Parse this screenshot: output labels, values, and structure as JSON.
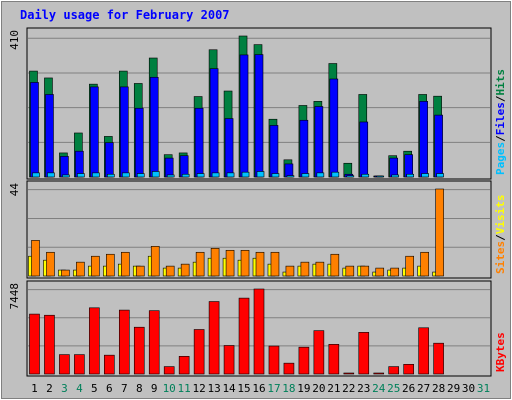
{
  "chart_data": {
    "title": "Daily usage for February 2007",
    "type": "bar",
    "days": [
      "1",
      "2",
      "3",
      "4",
      "5",
      "6",
      "7",
      "8",
      "9",
      "10",
      "11",
      "12",
      "13",
      "14",
      "15",
      "16",
      "17",
      "18",
      "19",
      "20",
      "21",
      "22",
      "23",
      "24",
      "25",
      "26",
      "27",
      "28",
      "29",
      "30",
      "31"
    ],
    "weekend_days": [
      3,
      4,
      10,
      11,
      17,
      18,
      24,
      25,
      31
    ],
    "panels": [
      {
        "id": "hits-files-pages",
        "ymax_label": "410",
        "ymax": 410,
        "labels": [
          {
            "text": "Pages",
            "color": "#00c0ff"
          },
          {
            "text": "Files",
            "color": "#0000ff"
          },
          {
            "text": "Hits",
            "color": "#008040"
          }
        ],
        "series": [
          {
            "name": "Hits",
            "color": "#008040",
            "values": [
              308,
              288,
              70,
              128,
              270,
              118,
              308,
              272,
              346,
              65,
              70,
              234,
              370,
              250,
              410,
              385,
              168,
              50,
              208,
              220,
              330,
              40,
              240,
              2,
              62,
              75,
              240,
              235,
              0,
              0,
              0
            ]
          },
          {
            "name": "Files",
            "color": "#0000ff",
            "values": [
              275,
              240,
              60,
              75,
              262,
              100,
              262,
              200,
              290,
              55,
              62,
              200,
              315,
              170,
              355,
              356,
              150,
              38,
              165,
              205,
              285,
              8,
              160,
              3,
              55,
              65,
              220,
              180,
              0,
              0,
              0
            ]
          },
          {
            "name": "Pages",
            "color": "#00c0ff",
            "values": [
              12,
              12,
              6,
              10,
              12,
              8,
              12,
              10,
              16,
              6,
              8,
              10,
              12,
              12,
              14,
              16,
              10,
              4,
              10,
              12,
              14,
              4,
              8,
              2,
              6,
              8,
              10,
              10,
              0,
              0,
              0
            ]
          }
        ]
      },
      {
        "id": "visits-sites",
        "ymax_label": "44",
        "ymax": 44,
        "labels": [
          {
            "text": "Sites",
            "color": "#ff8000"
          },
          {
            "text": "Visits",
            "color": "#ffff00"
          }
        ],
        "series": [
          {
            "name": "Visits",
            "color": "#ffff00",
            "values": [
              10,
              8,
              3,
              3,
              5,
              5,
              6,
              5,
              10,
              4,
              4,
              7,
              9,
              9,
              8,
              9,
              6,
              2,
              5,
              6,
              6,
              4,
              5,
              2,
              3,
              4,
              5,
              2,
              0,
              0,
              0
            ]
          },
          {
            "name": "Sites",
            "color": "#ff8000",
            "values": [
              18,
              12,
              3,
              7,
              10,
              11,
              12,
              5,
              15,
              5,
              6,
              12,
              14,
              13,
              13,
              12,
              12,
              5,
              7,
              7,
              11,
              5,
              5,
              4,
              4,
              10,
              12,
              44,
              0,
              0,
              0
            ]
          }
        ]
      },
      {
        "id": "kbytes",
        "ymax_label": "7448",
        "ymax": 7448,
        "labels": [
          {
            "text": "KBytes",
            "color": "#ff0000"
          }
        ],
        "series": [
          {
            "name": "KBytes",
            "color": "#ff0000",
            "values": [
              5250,
              5150,
              1700,
              1700,
              5800,
              1650,
              5600,
              4100,
              5550,
              650,
              1550,
              3900,
              6350,
              2500,
              6650,
              7448,
              2450,
              950,
              2350,
              3800,
              2600,
              50,
              3650,
              50,
              650,
              850,
              4050,
              2700,
              0,
              0,
              0
            ]
          }
        ]
      }
    ]
  }
}
